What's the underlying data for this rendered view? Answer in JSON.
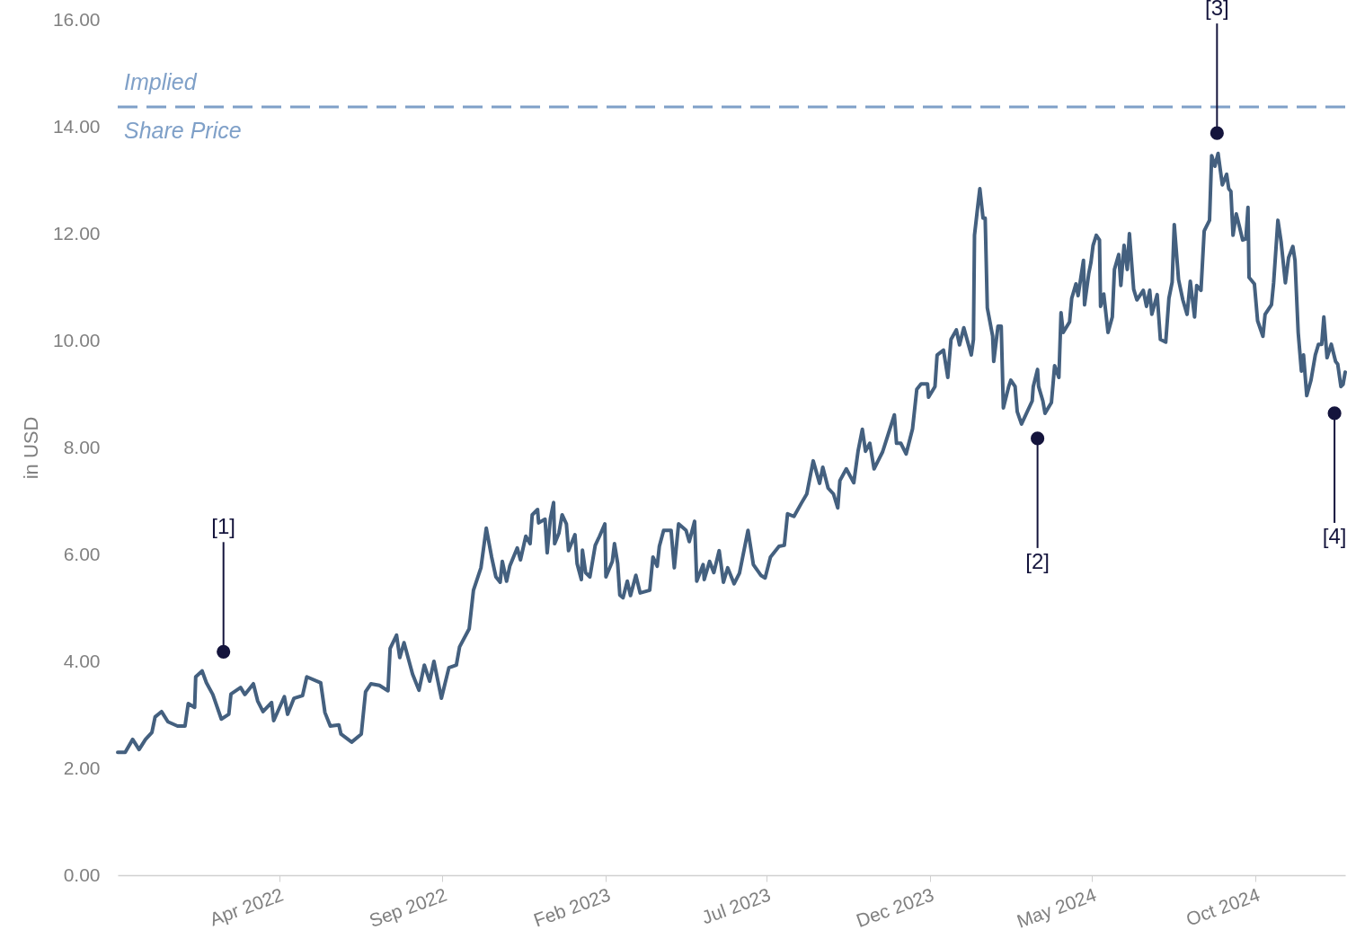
{
  "chart_data": {
    "type": "line",
    "ylabel": "in USD",
    "x": [
      "2021-11-01",
      "2021-11-08",
      "2021-11-15",
      "2021-11-21",
      "2021-11-27",
      "2021-12-03",
      "2021-12-06",
      "2021-12-12",
      "2021-12-18",
      "2021-12-27",
      "2022-01-03",
      "2022-01-06",
      "2022-01-12",
      "2022-01-13",
      "2022-01-19",
      "2022-01-23",
      "2022-01-29",
      "2022-02-06",
      "2022-02-13",
      "2022-02-15",
      "2022-02-24",
      "2022-02-28",
      "2022-03-08",
      "2022-03-12",
      "2022-03-17",
      "2022-03-25",
      "2022-03-27",
      "2022-04-06",
      "2022-04-09",
      "2022-04-15",
      "2022-04-23",
      "2022-04-27",
      "2022-05-10",
      "2022-05-14",
      "2022-05-19",
      "2022-05-27",
      "2022-05-29",
      "2022-06-08",
      "2022-06-17",
      "2022-06-21",
      "2022-06-26",
      "2022-07-04",
      "2022-07-12",
      "2022-07-14",
      "2022-07-20",
      "2022-07-23",
      "2022-07-27",
      "2022-08-04",
      "2022-08-10",
      "2022-08-15",
      "2022-08-20",
      "2022-08-24",
      "2022-08-31",
      "2022-09-07",
      "2022-09-14",
      "2022-09-17",
      "2022-09-26",
      "2022-09-30",
      "2022-10-07",
      "2022-10-12",
      "2022-10-17",
      "2022-10-21",
      "2022-10-25",
      "2022-10-27",
      "2022-10-31",
      "2022-11-03",
      "2022-11-10",
      "2022-11-13",
      "2022-11-18",
      "2022-11-22",
      "2022-11-24",
      "2022-11-29",
      "2022-11-30",
      "2022-12-06",
      "2022-12-08",
      "2022-12-11",
      "2022-12-14",
      "2022-12-15",
      "2022-12-19",
      "2022-12-22",
      "2022-12-26",
      "2022-12-28",
      "2023-01-03",
      "2023-01-05",
      "2023-01-09",
      "2023-01-10",
      "2023-01-13",
      "2023-01-17",
      "2023-01-22",
      "2023-01-26",
      "2023-01-31",
      "2023-02-01",
      "2023-02-07",
      "2023-02-09",
      "2023-02-12",
      "2023-02-14",
      "2023-02-17",
      "2023-02-21",
      "2023-02-24",
      "2023-03-01",
      "2023-03-05",
      "2023-03-14",
      "2023-03-17",
      "2023-03-21",
      "2023-03-23",
      "2023-03-27",
      "2023-04-03",
      "2023-04-06",
      "2023-04-10",
      "2023-04-17",
      "2023-04-20",
      "2023-04-25",
      "2023-04-27",
      "2023-05-03",
      "2023-05-04",
      "2023-05-09",
      "2023-05-13",
      "2023-05-18",
      "2023-05-22",
      "2023-05-26",
      "2023-06-01",
      "2023-06-06",
      "2023-06-14",
      "2023-06-19",
      "2023-06-26",
      "2023-06-30",
      "2023-07-05",
      "2023-07-13",
      "2023-07-18",
      "2023-07-21",
      "2023-07-27",
      "2023-08-03",
      "2023-08-08",
      "2023-08-14",
      "2023-08-20",
      "2023-08-23",
      "2023-08-28",
      "2023-09-02",
      "2023-09-06",
      "2023-09-08",
      "2023-09-14",
      "2023-09-21",
      "2023-09-25",
      "2023-09-29",
      "2023-10-02",
      "2023-10-06",
      "2023-10-10",
      "2023-10-18",
      "2023-10-22",
      "2023-10-29",
      "2023-10-31",
      "2023-11-04",
      "2023-11-09",
      "2023-11-15",
      "2023-11-19",
      "2023-11-23",
      "2023-11-29",
      "2023-11-30",
      "2023-12-06",
      "2023-12-08",
      "2023-12-14",
      "2023-12-18",
      "2023-12-21",
      "2023-12-26",
      "2023-12-29",
      "2024-01-02",
      "2024-01-09",
      "2024-01-11",
      "2024-01-12",
      "2024-01-15",
      "2024-01-17",
      "2024-01-20",
      "2024-01-22",
      "2024-01-24",
      "2024-01-29",
      "2024-01-30",
      "2024-02-03",
      "2024-02-06",
      "2024-02-08",
      "2024-02-13",
      "2024-02-15",
      "2024-02-19",
      "2024-02-21",
      "2024-02-25",
      "2024-03-06",
      "2024-03-07",
      "2024-03-11",
      "2024-03-12",
      "2024-03-16",
      "2024-03-18",
      "2024-03-24",
      "2024-03-27",
      "2024-03-31",
      "2024-04-02",
      "2024-04-04",
      "2024-04-10",
      "2024-04-12",
      "2024-04-16",
      "2024-04-18",
      "2024-04-23",
      "2024-04-24",
      "2024-04-28",
      "2024-04-30",
      "2024-05-02",
      "2024-05-05",
      "2024-05-08",
      "2024-05-09",
      "2024-05-12",
      "2024-05-16",
      "2024-05-20",
      "2024-05-22",
      "2024-05-26",
      "2024-05-28",
      "2024-05-31",
      "2024-06-03",
      "2024-06-05",
      "2024-06-09",
      "2024-06-12",
      "2024-06-18",
      "2024-06-21",
      "2024-06-24",
      "2024-06-26",
      "2024-07-01",
      "2024-07-04",
      "2024-07-09",
      "2024-07-12",
      "2024-07-15",
      "2024-07-17",
      "2024-07-21",
      "2024-07-25",
      "2024-07-29",
      "2024-08-01",
      "2024-08-05",
      "2024-08-07",
      "2024-08-11",
      "2024-08-14",
      "2024-08-19",
      "2024-08-21",
      "2024-08-24",
      "2024-08-27",
      "2024-08-31",
      "2024-09-04",
      "2024-09-06",
      "2024-09-08",
      "2024-09-10",
      "2024-09-13",
      "2024-09-16",
      "2024-09-19",
      "2024-09-22",
      "2024-09-24",
      "2024-09-25",
      "2024-09-30",
      "2024-10-03",
      "2024-10-08",
      "2024-10-10",
      "2024-10-16",
      "2024-10-18",
      "2024-10-22",
      "2024-10-25",
      "2024-10-29",
      "2024-11-01",
      "2024-11-05",
      "2024-11-07",
      "2024-11-10",
      "2024-11-13",
      "2024-11-15",
      "2024-11-18",
      "2024-11-22",
      "2024-11-26",
      "2024-11-29",
      "2024-12-02",
      "2024-12-04",
      "2024-12-07",
      "2024-12-11",
      "2024-12-15",
      "2024-12-17",
      "2024-12-20",
      "2024-12-22",
      "2024-12-24"
    ],
    "series": [
      {
        "color": "#44607f",
        "values": [
          2.3,
          2.3,
          2.54,
          2.35,
          2.54,
          2.67,
          2.96,
          3.06,
          2.87,
          2.79,
          2.79,
          3.21,
          3.14,
          3.71,
          3.82,
          3.6,
          3.38,
          2.92,
          3.01,
          3.39,
          3.51,
          3.38,
          3.58,
          3.26,
          3.06,
          3.23,
          2.89,
          3.34,
          3.01,
          3.31,
          3.36,
          3.71,
          3.6,
          3.04,
          2.79,
          2.81,
          2.64,
          2.49,
          2.64,
          3.43,
          3.58,
          3.55,
          3.45,
          4.24,
          4.49,
          4.07,
          4.35,
          3.76,
          3.46,
          3.93,
          3.63,
          4.0,
          3.31,
          3.88,
          3.93,
          4.27,
          4.61,
          5.33,
          5.75,
          6.49,
          5.95,
          5.58,
          5.48,
          5.87,
          5.5,
          5.78,
          6.12,
          5.9,
          6.34,
          6.2,
          6.74,
          6.84,
          6.59,
          6.66,
          6.03,
          6.67,
          6.97,
          6.2,
          6.4,
          6.74,
          6.57,
          6.07,
          6.37,
          5.83,
          5.53,
          6.08,
          5.66,
          5.58,
          6.17,
          6.34,
          6.57,
          5.58,
          5.87,
          6.2,
          5.83,
          5.24,
          5.19,
          5.5,
          5.23,
          5.61,
          5.28,
          5.33,
          5.95,
          5.78,
          6.15,
          6.45,
          6.45,
          5.75,
          6.57,
          6.45,
          6.24,
          6.62,
          5.5,
          5.81,
          5.53,
          5.87,
          5.66,
          6.07,
          5.48,
          5.75,
          5.45,
          5.65,
          6.45,
          5.81,
          5.61,
          5.56,
          5.95,
          6.15,
          6.17,
          6.76,
          6.71,
          6.96,
          7.13,
          7.75,
          7.33,
          7.63,
          7.24,
          7.13,
          6.87,
          7.38,
          7.6,
          7.34,
          7.93,
          8.34,
          7.93,
          8.08,
          7.6,
          7.92,
          8.17,
          8.61,
          8.08,
          8.08,
          7.88,
          8.35,
          9.09,
          9.19,
          9.19,
          8.94,
          9.14,
          9.73,
          9.82,
          9.31,
          10.02,
          10.2,
          9.92,
          10.24,
          9.73,
          10.02,
          11.97,
          12.5,
          12.84,
          12.29,
          12.29,
          10.61,
          10.08,
          9.61,
          10.27,
          10.27,
          8.74,
          9.14,
          9.26,
          9.14,
          8.67,
          8.44,
          8.87,
          9.14,
          9.46,
          9.14,
          8.87,
          8.64,
          8.84,
          9.53,
          9.31,
          10.52,
          10.15,
          10.35,
          10.79,
          11.06,
          10.84,
          11.5,
          10.67,
          11.26,
          11.46,
          11.78,
          11.97,
          11.88,
          10.64,
          10.87,
          10.15,
          10.44,
          11.33,
          11.61,
          11.03,
          11.78,
          11.33,
          12.0,
          10.96,
          10.76,
          10.94,
          10.64,
          10.94,
          10.49,
          10.86,
          10.02,
          9.97,
          10.79,
          11.09,
          12.17,
          11.14,
          10.76,
          10.49,
          11.11,
          10.44,
          11.03,
          10.94,
          12.05,
          12.25,
          13.46,
          13.26,
          13.5,
          12.91,
          13.11,
          12.84,
          12.79,
          11.97,
          12.37,
          12.13,
          11.88,
          11.9,
          12.49,
          11.18,
          11.06,
          10.37,
          10.08,
          10.49,
          10.67,
          11.08,
          12.25,
          11.85,
          11.08,
          11.55,
          11.76,
          11.5,
          10.15,
          9.43,
          9.73,
          8.97,
          9.26,
          9.73,
          9.93,
          9.93,
          10.44,
          9.68,
          9.93,
          9.61,
          9.56,
          9.14,
          9.18,
          9.41
        ]
      }
    ],
    "xlim": [
      "2021-11-01",
      "2024-12-24"
    ],
    "xticks": [
      {
        "value": "2022-04",
        "label": "Apr 2022"
      },
      {
        "value": "2022-09",
        "label": "Sep 2022"
      },
      {
        "value": "2023-02",
        "label": "Feb 2023"
      },
      {
        "value": "2023-07",
        "label": "Jul 2023"
      },
      {
        "value": "2023-12",
        "label": "Dec 2023"
      },
      {
        "value": "2024-05",
        "label": "May 2024"
      },
      {
        "value": "2024-10",
        "label": "Oct 2024"
      }
    ],
    "ylim": [
      0,
      16
    ],
    "yticks": [
      {
        "value": 0,
        "label": "0.00"
      },
      {
        "value": 2,
        "label": "2.00"
      },
      {
        "value": 4,
        "label": "4.00"
      },
      {
        "value": 6,
        "label": "6.00"
      },
      {
        "value": 8,
        "label": "8.00"
      },
      {
        "value": 10,
        "label": "10.00"
      },
      {
        "value": 12,
        "label": "12.00"
      },
      {
        "value": 14,
        "label": "14.00"
      },
      {
        "value": 16,
        "label": "16.00"
      }
    ],
    "ref_lines": [
      {
        "axis": "y",
        "value": 14.37,
        "label": "Implied Share Price",
        "color": "#7fa0c8",
        "line_style": "dashed"
      }
    ],
    "annotations": [
      {
        "text": "[1]",
        "x": "2022-02-08",
        "y": 4.18
      },
      {
        "text": "[2]",
        "x": "2024-03-11",
        "y": 8.17
      },
      {
        "text": "[3]",
        "x": "2024-08-26",
        "y": 13.88
      },
      {
        "text": "[4]",
        "x": "2024-12-14",
        "y": 8.64
      }
    ],
    "grid": false,
    "marker": "none",
    "line_style": "solid"
  }
}
